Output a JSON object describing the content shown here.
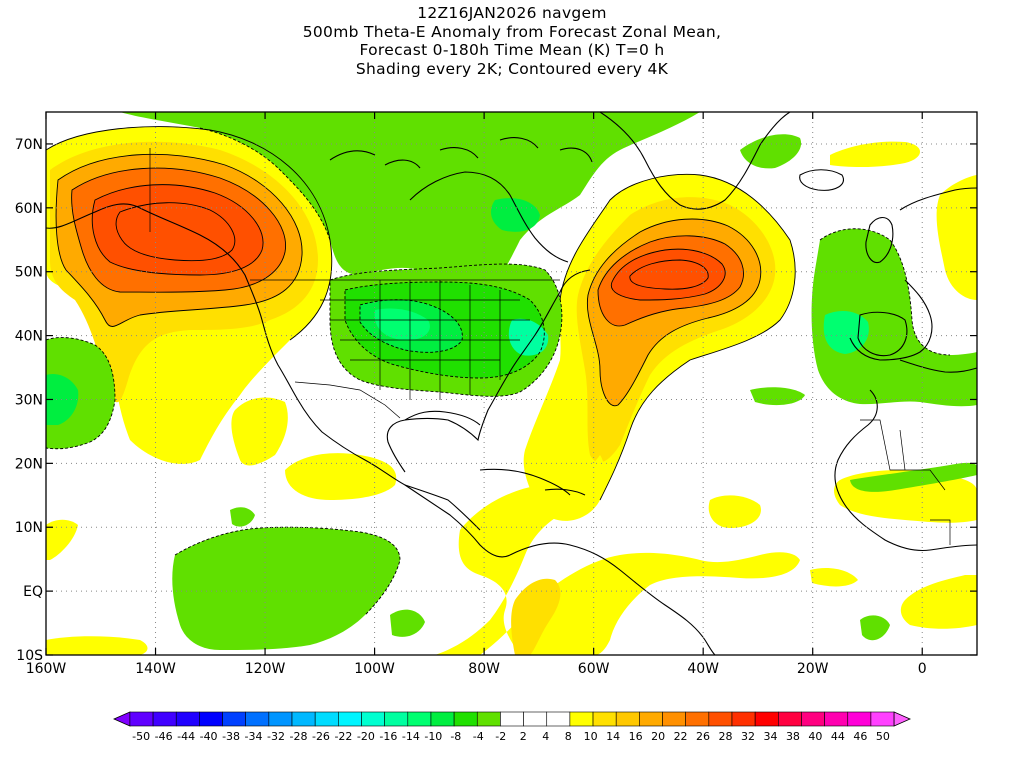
{
  "title": {
    "lines": [
      "12Z16JAN2026 navgem",
      "500mb Theta-E Anomaly from Forecast Zonal Mean,",
      "Forecast 0-180h Time Mean (K) T=0 h",
      "Shading every 2K; Contoured every 4K"
    ]
  },
  "map": {
    "lon_range": [
      -160,
      10
    ],
    "lat_range": [
      -10,
      75
    ],
    "lon_ticks": [
      {
        "lon": -160,
        "label": "160W"
      },
      {
        "lon": -140,
        "label": "140W"
      },
      {
        "lon": -120,
        "label": "120W"
      },
      {
        "lon": -100,
        "label": "100W"
      },
      {
        "lon": -80,
        "label": "80W"
      },
      {
        "lon": -60,
        "label": "60W"
      },
      {
        "lon": -40,
        "label": "40W"
      },
      {
        "lon": -20,
        "label": "20W"
      },
      {
        "lon": 0,
        "label": "0"
      }
    ],
    "lat_ticks": [
      {
        "lat": 70,
        "label": "70N"
      },
      {
        "lat": 60,
        "label": "60N"
      },
      {
        "lat": 50,
        "label": "50N"
      },
      {
        "lat": 40,
        "label": "40N"
      },
      {
        "lat": 30,
        "label": "30N"
      },
      {
        "lat": 20,
        "label": "20N"
      },
      {
        "lat": 10,
        "label": "10N"
      },
      {
        "lat": 0,
        "label": "EQ"
      },
      {
        "lat": -10,
        "label": "10S"
      }
    ],
    "anomaly_centers": [
      {
        "region": "gulf-of-alaska-warm",
        "lon": -134,
        "lat": 57,
        "value": 26
      },
      {
        "region": "north-atlantic-warm",
        "lon": -47,
        "lat": 50,
        "value": 26
      },
      {
        "region": "central-us-cold",
        "lon": -95,
        "lat": 42,
        "value": -18
      },
      {
        "region": "us-east-coast-cold",
        "lon": -72,
        "lat": 40,
        "value": -20
      },
      {
        "region": "eastern-atlantic-cold",
        "lon": -14,
        "lat": 40,
        "value": -16
      },
      {
        "region": "central-pacific-cold",
        "lon": -158,
        "lat": 30,
        "value": -14
      },
      {
        "region": "hudson-bay-cold",
        "lon": -80,
        "lat": 58,
        "value": -16
      }
    ]
  },
  "colorbar": {
    "labels": [
      "-50",
      "-46",
      "-44",
      "-40",
      "-38",
      "-34",
      "-32",
      "-28",
      "-26",
      "-22",
      "-20",
      "-16",
      "-14",
      "-10",
      "-8",
      "-4",
      "-2",
      "2",
      "4",
      "8",
      "10",
      "14",
      "16",
      "20",
      "22",
      "26",
      "28",
      "32",
      "34",
      "38",
      "40",
      "44",
      "46",
      "50"
    ],
    "colors": [
      "#8000ff",
      "#6000ff",
      "#4000ff",
      "#2000ff",
      "#0000ff",
      "#0040ff",
      "#0070ff",
      "#0095ff",
      "#00b8ff",
      "#00dcff",
      "#00f5ff",
      "#00ffd0",
      "#00ffa0",
      "#00ff70",
      "#00ee40",
      "#20e000",
      "#60e000",
      "#ffffff",
      "#ffffff",
      "#ffffff",
      "#ffff00",
      "#ffe000",
      "#ffc800",
      "#ffaa00",
      "#ff9000",
      "#ff7000",
      "#ff5000",
      "#ff3000",
      "#ff0000",
      "#ff0040",
      "#ff0080",
      "#ff00b0",
      "#ff00d8",
      "#ff40ff",
      "#ff60ff"
    ]
  }
}
